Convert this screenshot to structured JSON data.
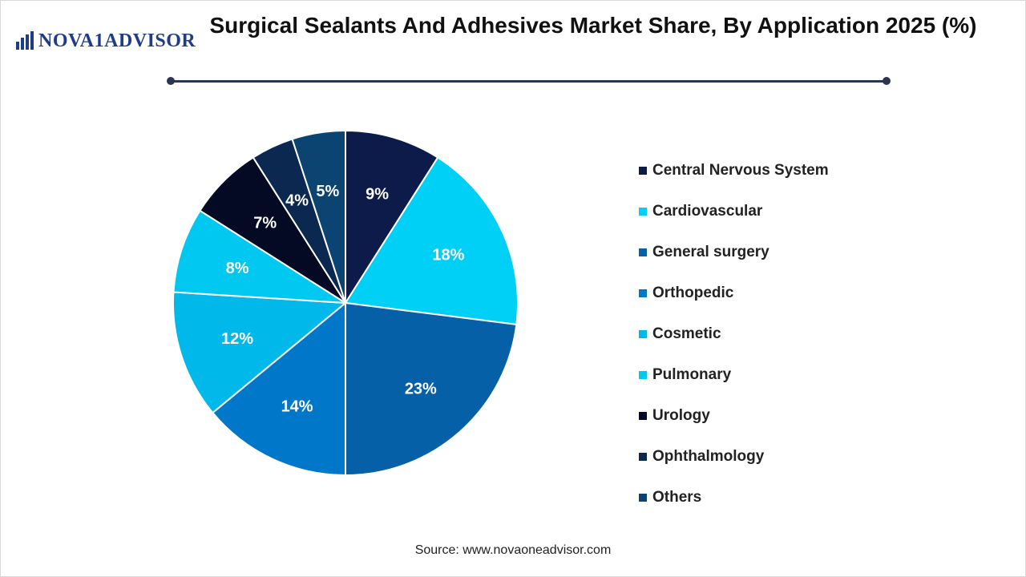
{
  "brand": {
    "name": "NOVA1ADVISOR",
    "icon": "bar-chart-icon",
    "color": "#1f3c88"
  },
  "chart_data": {
    "type": "pie",
    "title": "Surgical Sealants And Adhesives Market Share, By Application 2025 (%)",
    "categories": [
      "Central Nervous System",
      "Cardiovascular",
      "General surgery",
      "Orthopedic",
      "Cosmetic",
      "Pulmonary",
      "Urology",
      "Ophthalmology",
      "Others"
    ],
    "values": [
      9,
      18,
      23,
      14,
      12,
      8,
      7,
      4,
      5
    ],
    "labels": [
      "9%",
      "18%",
      "23%",
      "14%",
      "12%",
      "8%",
      "7%",
      "4%",
      "5%"
    ],
    "colors": [
      "#0d1b4b",
      "#00d0f5",
      "#0560a8",
      "#0077c8",
      "#00b8ea",
      "#00c8f0",
      "#050a24",
      "#0a2850",
      "#0b4470"
    ],
    "legend_position": "right",
    "start_angle": "12 o'clock",
    "direction": "clockwise"
  },
  "source": "Source: www.novaoneadvisor.com"
}
